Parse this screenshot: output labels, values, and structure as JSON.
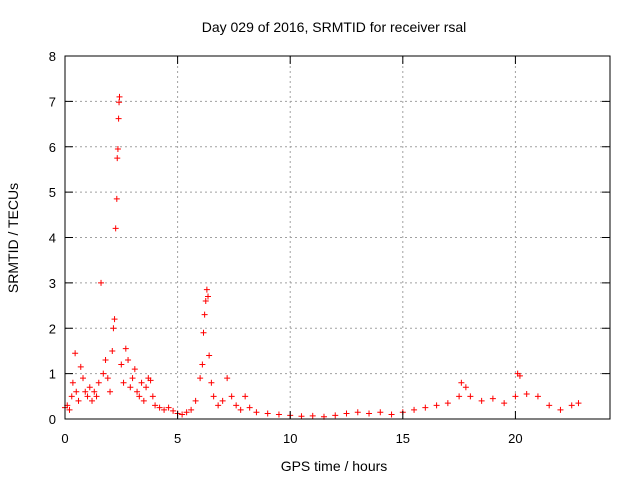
{
  "chart_data": {
    "type": "scatter",
    "title": "Day 029 of 2016, SRMTID for receiver rsal",
    "xlabel": "GPS time / hours",
    "ylabel": "SRMTID / TECUs",
    "xlim": [
      0,
      24.2
    ],
    "ylim": [
      0,
      8
    ],
    "xticks": [
      0,
      5,
      10,
      15,
      20
    ],
    "xtick_labels": [
      "0",
      "5",
      "10",
      "15",
      "20"
    ],
    "yticks": [
      0,
      1,
      2,
      3,
      4,
      5,
      6,
      7,
      8
    ],
    "ytick_labels": [
      "0",
      "1",
      "2",
      "3",
      "4",
      "5",
      "6",
      "7",
      "8"
    ],
    "grid": true,
    "marker": "+",
    "color": "#ff0000",
    "series": [
      {
        "name": "SRMTID",
        "points": [
          [
            0.0,
            0.25
          ],
          [
            0.1,
            0.3
          ],
          [
            0.2,
            0.2
          ],
          [
            0.3,
            0.5
          ],
          [
            0.35,
            0.8
          ],
          [
            0.45,
            1.45
          ],
          [
            0.5,
            0.6
          ],
          [
            0.6,
            0.4
          ],
          [
            0.7,
            1.15
          ],
          [
            0.8,
            0.9
          ],
          [
            0.9,
            0.6
          ],
          [
            1.0,
            0.5
          ],
          [
            1.1,
            0.7
          ],
          [
            1.2,
            0.4
          ],
          [
            1.3,
            0.6
          ],
          [
            1.4,
            0.5
          ],
          [
            1.5,
            0.8
          ],
          [
            1.6,
            3.0
          ],
          [
            1.7,
            1.0
          ],
          [
            1.8,
            1.3
          ],
          [
            1.9,
            0.9
          ],
          [
            2.0,
            0.6
          ],
          [
            2.1,
            1.5
          ],
          [
            2.15,
            2.0
          ],
          [
            2.2,
            2.2
          ],
          [
            2.25,
            4.2
          ],
          [
            2.3,
            4.85
          ],
          [
            2.32,
            5.75
          ],
          [
            2.35,
            5.95
          ],
          [
            2.38,
            6.62
          ],
          [
            2.4,
            6.98
          ],
          [
            2.42,
            7.1
          ],
          [
            2.5,
            1.2
          ],
          [
            2.6,
            0.8
          ],
          [
            2.7,
            1.55
          ],
          [
            2.8,
            1.3
          ],
          [
            2.9,
            0.7
          ],
          [
            3.0,
            0.9
          ],
          [
            3.1,
            1.1
          ],
          [
            3.2,
            0.6
          ],
          [
            3.3,
            0.5
          ],
          [
            3.4,
            0.8
          ],
          [
            3.5,
            0.4
          ],
          [
            3.6,
            0.7
          ],
          [
            3.7,
            0.9
          ],
          [
            3.8,
            0.85
          ],
          [
            3.9,
            0.5
          ],
          [
            4.0,
            0.3
          ],
          [
            4.2,
            0.25
          ],
          [
            4.4,
            0.2
          ],
          [
            4.6,
            0.25
          ],
          [
            4.8,
            0.18
          ],
          [
            5.0,
            0.12
          ],
          [
            5.2,
            0.1
          ],
          [
            5.4,
            0.15
          ],
          [
            5.6,
            0.2
          ],
          [
            5.8,
            0.4
          ],
          [
            6.0,
            0.9
          ],
          [
            6.1,
            1.2
          ],
          [
            6.15,
            1.9
          ],
          [
            6.2,
            2.3
          ],
          [
            6.25,
            2.6
          ],
          [
            6.3,
            2.85
          ],
          [
            6.35,
            2.7
          ],
          [
            6.4,
            1.4
          ],
          [
            6.5,
            0.8
          ],
          [
            6.6,
            0.5
          ],
          [
            6.8,
            0.3
          ],
          [
            7.0,
            0.4
          ],
          [
            7.2,
            0.9
          ],
          [
            7.4,
            0.5
          ],
          [
            7.6,
            0.3
          ],
          [
            7.8,
            0.2
          ],
          [
            8.0,
            0.5
          ],
          [
            8.2,
            0.25
          ],
          [
            8.5,
            0.15
          ],
          [
            9.0,
            0.12
          ],
          [
            9.5,
            0.1
          ],
          [
            10.0,
            0.08
          ],
          [
            10.5,
            0.06
          ],
          [
            11.0,
            0.07
          ],
          [
            11.5,
            0.05
          ],
          [
            12.0,
            0.08
          ],
          [
            12.5,
            0.12
          ],
          [
            13.0,
            0.15
          ],
          [
            13.5,
            0.12
          ],
          [
            14.0,
            0.15
          ],
          [
            14.5,
            0.1
          ],
          [
            15.0,
            0.15
          ],
          [
            15.5,
            0.2
          ],
          [
            16.0,
            0.25
          ],
          [
            16.5,
            0.3
          ],
          [
            17.0,
            0.35
          ],
          [
            17.5,
            0.5
          ],
          [
            17.6,
            0.8
          ],
          [
            17.8,
            0.7
          ],
          [
            18.0,
            0.5
          ],
          [
            18.5,
            0.4
          ],
          [
            19.0,
            0.45
          ],
          [
            19.5,
            0.35
          ],
          [
            20.0,
            0.5
          ],
          [
            20.1,
            1.0
          ],
          [
            20.2,
            0.95
          ],
          [
            20.5,
            0.55
          ],
          [
            21.0,
            0.5
          ],
          [
            21.5,
            0.3
          ],
          [
            22.0,
            0.2
          ],
          [
            22.5,
            0.3
          ],
          [
            22.8,
            0.35
          ]
        ]
      }
    ]
  }
}
